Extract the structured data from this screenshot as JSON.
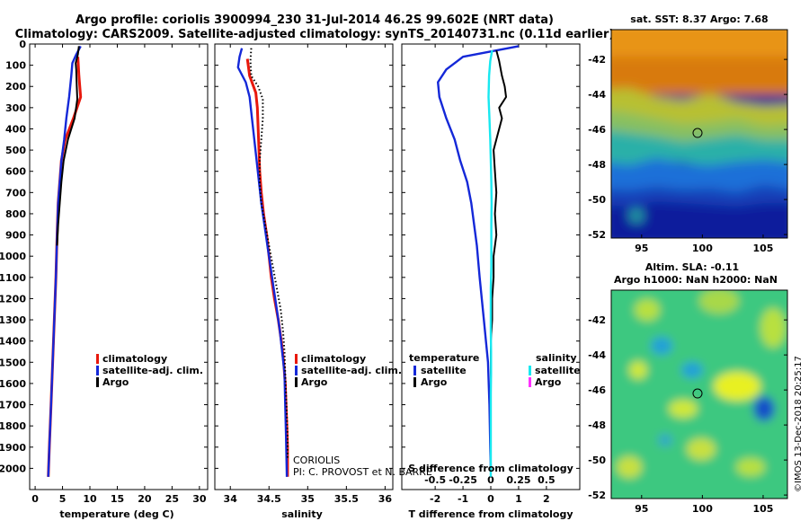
{
  "title_lines": [
    "Argo profile: coriolis 3900994_230 31-Jul-2014 46.2S 99.602E (NRT data)",
    "Climatology: CARS2009. Satellite-adjusted climatology: synTS_20140731.nc (0.11d earlier)"
  ],
  "depth_ticks": [
    "0",
    "100",
    "200",
    "300",
    "400",
    "500",
    "600",
    "700",
    "800",
    "900",
    "1000",
    "1100",
    "1200",
    "1300",
    "1400",
    "1500",
    "1600",
    "1700",
    "1800",
    "1900",
    "2000"
  ],
  "source_note": [
    "CORIOLIS",
    "PI: C. PROVOST et N. BARRE"
  ],
  "sst_map_title": "sat. SST: 8.37 Argo: 7.68",
  "sla_map_title_lines": [
    "Altim. SLA: -0.11",
    "Argo h1000: NaN h2000: NaN"
  ],
  "side_credit": "©IMOS 13-Dec-2018 20:25:17",
  "colors": {
    "climatology": "#e8180c",
    "satellite": "#1428d8",
    "argo": "#000000",
    "sat_salinity": "#18e8f0",
    "argo_salinity": "#ff30ff"
  },
  "chart_data": [
    {
      "type": "line",
      "name": "temperature",
      "xlabel": "temperature (deg C)",
      "ylabel": "",
      "xlim": [
        -1,
        31.5
      ],
      "ylim": [
        2100,
        0
      ],
      "xticks": [
        "0",
        "5",
        "10",
        "15",
        "20",
        "25",
        "30"
      ],
      "xtick_values": [
        0,
        5,
        10,
        15,
        20,
        25,
        30
      ],
      "legend": {
        "position": "lower-right",
        "entries": [
          "climatology",
          "satellite-adj. clim.",
          "Argo"
        ]
      },
      "series": [
        {
          "name": "climatology",
          "color": "#e8180c",
          "points": [
            [
              7.8,
              60
            ],
            [
              8.0,
              150
            ],
            [
              8.3,
              250
            ],
            [
              7.0,
              350
            ],
            [
              5.5,
              450
            ],
            [
              4.8,
              550
            ],
            [
              4.5,
              650
            ],
            [
              4.2,
              750
            ],
            [
              4.0,
              900
            ],
            [
              3.8,
              1100
            ],
            [
              3.5,
              1300
            ],
            [
              3.2,
              1500
            ],
            [
              2.9,
              1700
            ],
            [
              2.6,
              1900
            ],
            [
              2.4,
              2040
            ]
          ]
        },
        {
          "name": "satellite-adj. clim.",
          "color": "#1428d8",
          "points": [
            [
              8.3,
              10
            ],
            [
              7.5,
              50
            ],
            [
              6.8,
              90
            ],
            [
              6.6,
              150
            ],
            [
              6.2,
              250
            ],
            [
              5.7,
              350
            ],
            [
              5.3,
              450
            ],
            [
              4.8,
              550
            ],
            [
              4.5,
              650
            ],
            [
              4.2,
              750
            ],
            [
              4.0,
              900
            ],
            [
              3.8,
              1100
            ],
            [
              3.5,
              1300
            ],
            [
              3.2,
              1500
            ],
            [
              2.9,
              1700
            ],
            [
              2.6,
              1900
            ],
            [
              2.4,
              2040
            ]
          ]
        },
        {
          "name": "Argo",
          "color": "#000000",
          "points": [
            [
              8.0,
              10
            ],
            [
              7.8,
              50
            ],
            [
              7.4,
              90
            ],
            [
              7.5,
              120
            ],
            [
              7.6,
              200
            ],
            [
              7.7,
              260
            ],
            [
              7.2,
              350
            ],
            [
              6.0,
              450
            ],
            [
              5.2,
              550
            ],
            [
              4.8,
              650
            ],
            [
              4.5,
              750
            ],
            [
              4.2,
              850
            ],
            [
              4.0,
              950
            ]
          ]
        }
      ]
    },
    {
      "type": "line",
      "name": "salinity",
      "xlabel": "salinity",
      "ylabel": "",
      "xlim": [
        33.8,
        36.1
      ],
      "ylim": [
        2100,
        0
      ],
      "xticks": [
        "34",
        "34.5",
        "35",
        "35.5",
        "36"
      ],
      "xtick_values": [
        34,
        34.5,
        35,
        35.5,
        36
      ],
      "legend": {
        "position": "lower-right",
        "entries": [
          "climatology",
          "satellite-adj. clim.",
          "Argo"
        ]
      },
      "series": [
        {
          "name": "climatology",
          "color": "#e8180c",
          "points": [
            [
              34.22,
              70
            ],
            [
              34.25,
              150
            ],
            [
              34.33,
              230
            ],
            [
              34.35,
              300
            ],
            [
              34.36,
              400
            ],
            [
              34.37,
              500
            ],
            [
              34.38,
              600
            ],
            [
              34.4,
              700
            ],
            [
              34.43,
              800
            ],
            [
              34.47,
              900
            ],
            [
              34.5,
              1000
            ],
            [
              34.53,
              1100
            ],
            [
              34.57,
              1200
            ],
            [
              34.62,
              1300
            ],
            [
              34.66,
              1400
            ],
            [
              34.69,
              1500
            ],
            [
              34.71,
              1600
            ],
            [
              34.72,
              1700
            ],
            [
              34.73,
              1800
            ],
            [
              34.74,
              1900
            ],
            [
              34.74,
              2040
            ]
          ]
        },
        {
          "name": "satellite-adj. clim.",
          "color": "#1428d8",
          "points": [
            [
              34.15,
              20
            ],
            [
              34.12,
              60
            ],
            [
              34.1,
              110
            ],
            [
              34.2,
              180
            ],
            [
              34.25,
              250
            ],
            [
              34.28,
              350
            ],
            [
              34.31,
              450
            ],
            [
              34.34,
              550
            ],
            [
              34.37,
              650
            ],
            [
              34.4,
              750
            ],
            [
              34.44,
              850
            ],
            [
              34.48,
              950
            ],
            [
              34.52,
              1050
            ],
            [
              34.56,
              1150
            ],
            [
              34.6,
              1250
            ],
            [
              34.64,
              1350
            ],
            [
              34.67,
              1450
            ],
            [
              34.7,
              1550
            ],
            [
              34.71,
              1700
            ],
            [
              34.72,
              1850
            ],
            [
              34.73,
              2040
            ]
          ]
        },
        {
          "name": "Argo",
          "color": "#000000",
          "points": [
            [
              34.27,
              20
            ],
            [
              34.26,
              80
            ],
            [
              34.27,
              150
            ],
            [
              34.36,
              200
            ],
            [
              34.42,
              260
            ],
            [
              34.42,
              350
            ],
            [
              34.4,
              450
            ],
            [
              34.38,
              550
            ],
            [
              34.38,
              650
            ],
            [
              34.4,
              750
            ],
            [
              34.45,
              850
            ],
            [
              34.5,
              950
            ],
            [
              34.55,
              1050
            ],
            [
              34.6,
              1150
            ],
            [
              34.65,
              1250
            ],
            [
              34.68,
              1350
            ],
            [
              34.7,
              1450
            ],
            [
              34.71,
              1550
            ],
            [
              34.72,
              1650
            ],
            [
              34.73,
              1750
            ],
            [
              34.74,
              1850
            ],
            [
              34.74,
              1950
            ]
          ]
        }
      ]
    },
    {
      "type": "line",
      "name": "differences",
      "xlabel": "T difference from climatology",
      "x2label": "S difference from climatology",
      "ylabel": "",
      "xlim": [
        -3.2,
        3.2
      ],
      "x2lim": [
        -0.8,
        0.8
      ],
      "ylim": [
        2100,
        0
      ],
      "xticks": [
        "-2",
        "-1",
        "0",
        "1",
        "2"
      ],
      "xtick_values": [
        -2,
        -1,
        0,
        1,
        2
      ],
      "x2ticks": [
        "-0.5",
        "-0.25",
        "0",
        "0.25",
        "0.5"
      ],
      "x2tick_values": [
        -0.5,
        -0.25,
        0,
        0.25,
        0.5
      ],
      "legend_groups": [
        {
          "title": "temperature",
          "position": "lower-left",
          "entries": [
            "satellite",
            "Argo"
          ]
        },
        {
          "title": "salinity",
          "position": "lower-right",
          "entries": [
            "satellite",
            "Argo"
          ]
        }
      ],
      "series": [
        {
          "name": "temperature satellite",
          "color": "#1428d8",
          "points": [
            [
              1.0,
              10
            ],
            [
              -1.0,
              60
            ],
            [
              -1.6,
              120
            ],
            [
              -1.9,
              180
            ],
            [
              -1.85,
              250
            ],
            [
              -1.6,
              350
            ],
            [
              -1.3,
              450
            ],
            [
              -1.1,
              550
            ],
            [
              -0.85,
              650
            ],
            [
              -0.7,
              750
            ],
            [
              -0.6,
              850
            ],
            [
              -0.5,
              950
            ],
            [
              -0.4,
              1100
            ],
            [
              -0.25,
              1300
            ],
            [
              -0.1,
              1500
            ],
            [
              -0.05,
              1700
            ],
            [
              -0.02,
              1900
            ],
            [
              0.0,
              2000
            ]
          ]
        },
        {
          "name": "temperature Argo",
          "color": "#000000",
          "points": [
            [
              0.2,
              30
            ],
            [
              0.3,
              80
            ],
            [
              0.4,
              150
            ],
            [
              0.5,
              200
            ],
            [
              0.55,
              250
            ],
            [
              0.3,
              300
            ],
            [
              0.4,
              350
            ],
            [
              0.3,
              400
            ],
            [
              0.2,
              450
            ],
            [
              0.1,
              500
            ],
            [
              0.15,
              600
            ],
            [
              0.2,
              700
            ],
            [
              0.15,
              800
            ],
            [
              0.2,
              900
            ],
            [
              0.1,
              1000
            ],
            [
              0.1,
              1100
            ],
            [
              0.05,
              1200
            ],
            [
              0.05,
              1300
            ],
            [
              0.0,
              1400
            ],
            [
              0.0,
              1500
            ],
            [
              0.0,
              1600
            ],
            [
              0.0,
              1700
            ],
            [
              0.0,
              1800
            ],
            [
              0.0,
              1900
            ],
            [
              0.0,
              2000
            ]
          ]
        },
        {
          "name": "salinity satellite",
          "color": "#18e8f0",
          "points": [
            [
              0.05,
              30
            ],
            [
              -0.02,
              80
            ],
            [
              -0.06,
              150
            ],
            [
              -0.08,
              250
            ],
            [
              -0.05,
              350
            ],
            [
              -0.02,
              450
            ],
            [
              0.0,
              550
            ],
            [
              0.02,
              650
            ],
            [
              0.03,
              750
            ],
            [
              0.02,
              850
            ],
            [
              0.02,
              950
            ],
            [
              0.02,
              1050
            ],
            [
              0.0,
              1150
            ],
            [
              0.0,
              1250
            ],
            [
              0.0,
              1350
            ],
            [
              0.01,
              1450
            ],
            [
              0.01,
              1550
            ],
            [
              0.0,
              1650
            ],
            [
              0.0,
              1750
            ],
            [
              0.0,
              1850
            ],
            [
              0.0,
              1950
            ],
            [
              0.0,
              2040
            ]
          ]
        }
      ]
    },
    {
      "type": "heatmap",
      "name": "sat. SST map",
      "title": "sat. SST: 8.37 Argo: 7.68",
      "xticks": [
        "95",
        "100",
        "105"
      ],
      "xtick_values": [
        95,
        100,
        105
      ],
      "yticks": [
        "-42",
        "-44",
        "-46",
        "-48",
        "-50",
        "-52"
      ],
      "ytick_values": [
        -42,
        -44,
        -46,
        -48,
        -50,
        -52
      ],
      "xlim": [
        92.5,
        107
      ],
      "ylim": [
        -52.2,
        -40.3
      ],
      "marker": [
        99.602,
        -46.2
      ]
    },
    {
      "type": "heatmap",
      "name": "altimetry SLA map",
      "title": "Altim. SLA: -0.11",
      "subtitle": "Argo h1000: NaN h2000: NaN",
      "xticks": [
        "95",
        "100",
        "105"
      ],
      "xtick_values": [
        95,
        100,
        105
      ],
      "yticks": [
        "-42",
        "-44",
        "-46",
        "-48",
        "-50",
        "-52"
      ],
      "ytick_values": [
        -42,
        -44,
        -46,
        -48,
        -50,
        -52
      ],
      "xlim": [
        92.5,
        107
      ],
      "ylim": [
        -52.2,
        -40.3
      ],
      "marker": [
        99.602,
        -46.2
      ]
    }
  ]
}
